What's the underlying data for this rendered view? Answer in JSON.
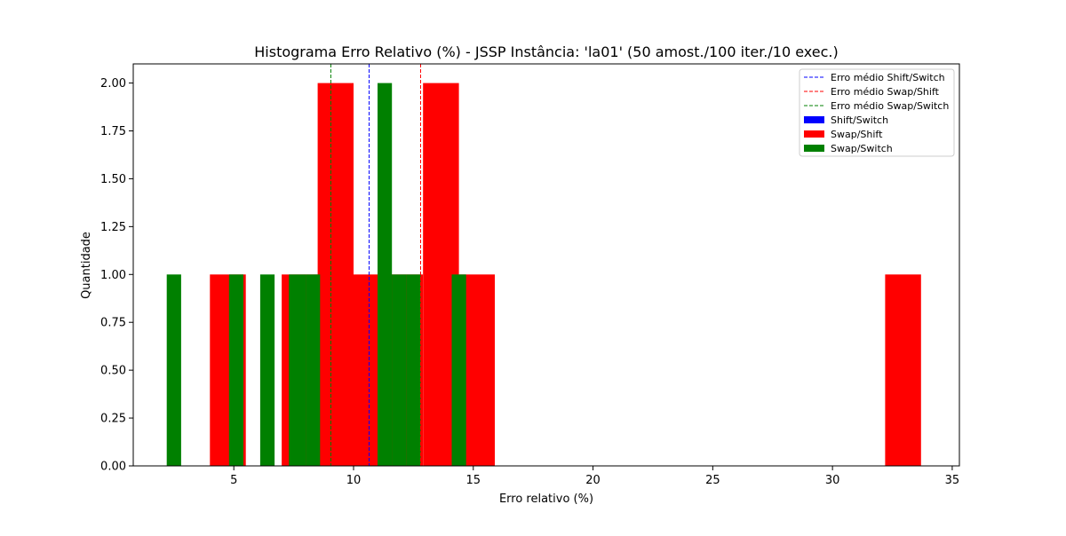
{
  "chart_data": {
    "type": "bar",
    "title": "Histograma Erro Relativo (%) - JSSP Instância: 'la01' (50 amost./100 iter./10 exec.)",
    "xlabel": "Erro relativo (%)",
    "ylabel": "Quantidade",
    "xlim": [
      0.8,
      35.3
    ],
    "ylim": [
      0,
      2.1
    ],
    "xticks": [
      5,
      10,
      15,
      20,
      25,
      30,
      35
    ],
    "yticks": [
      "0.00",
      "0.25",
      "0.50",
      "0.75",
      "1.00",
      "1.25",
      "1.50",
      "1.75",
      "2.00"
    ],
    "grid": false,
    "legend_position": "top-right",
    "series": [
      {
        "name": "Shift/Switch",
        "color": "#0000ff",
        "bins": []
      },
      {
        "name": "Swap/Shift",
        "color": "#ff0000",
        "bins": [
          {
            "x0": 4.0,
            "x1": 5.5,
            "count": 1
          },
          {
            "x0": 7.0,
            "x1": 8.5,
            "count": 1
          },
          {
            "x0": 8.5,
            "x1": 10.0,
            "count": 2
          },
          {
            "x0": 10.0,
            "x1": 11.5,
            "count": 1
          },
          {
            "x0": 11.5,
            "x1": 12.9,
            "count": 1
          },
          {
            "x0": 12.9,
            "x1": 14.4,
            "count": 2
          },
          {
            "x0": 14.4,
            "x1": 15.9,
            "count": 1
          },
          {
            "x0": 32.2,
            "x1": 33.7,
            "count": 1
          }
        ]
      },
      {
        "name": "Swap/Switch",
        "color": "#008000",
        "bins": [
          {
            "x0": 2.2,
            "x1": 2.8,
            "count": 1
          },
          {
            "x0": 4.8,
            "x1": 5.4,
            "count": 1
          },
          {
            "x0": 6.1,
            "x1": 6.7,
            "count": 1
          },
          {
            "x0": 7.3,
            "x1": 8.0,
            "count": 1
          },
          {
            "x0": 8.0,
            "x1": 8.6,
            "count": 1
          },
          {
            "x0": 11.0,
            "x1": 11.6,
            "count": 2
          },
          {
            "x0": 11.6,
            "x1": 12.2,
            "count": 1
          },
          {
            "x0": 12.2,
            "x1": 12.8,
            "count": 1
          },
          {
            "x0": 14.1,
            "x1": 14.7,
            "count": 1
          }
        ]
      }
    ],
    "mean_lines": [
      {
        "name": "Erro médio Shift/Switch",
        "x": 10.65,
        "color": "#0000ff"
      },
      {
        "name": "Erro médio Swap/Shift",
        "x": 12.8,
        "color": "#ff0000"
      },
      {
        "name": "Erro médio Swap/Switch",
        "x": 9.05,
        "color": "#008000"
      }
    ]
  }
}
